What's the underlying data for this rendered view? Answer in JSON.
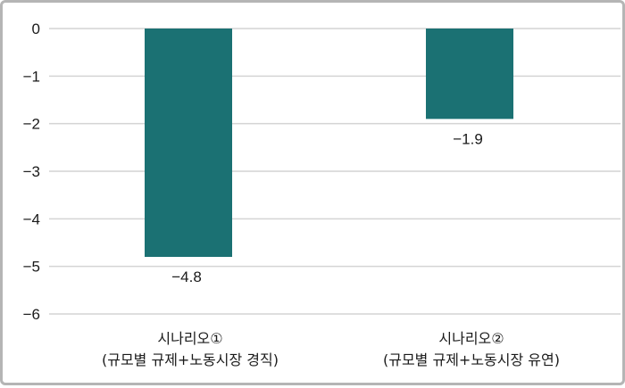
{
  "chart_data": {
    "type": "bar",
    "categories": [
      [
        "시나리오①",
        "(규모별 규제+노동시장 경직)"
      ],
      [
        "시나리오②",
        "(규모별 규제+노동시장 유연)"
      ]
    ],
    "values": [
      -4.8,
      -1.9
    ],
    "data_labels": [
      "−4.8",
      "−1.9"
    ],
    "y_ticks": [
      0,
      -1,
      -2,
      -3,
      -4,
      -5,
      -6
    ],
    "y_tick_labels": [
      "0",
      "−1",
      "−2",
      "−3",
      "−4",
      "−5",
      "−6"
    ],
    "ylim": [
      -6,
      0
    ],
    "grid": true,
    "title": "",
    "xlabel": "",
    "ylabel": "",
    "bar_color": "#1b7173",
    "grid_color": "#d4d4d4"
  }
}
